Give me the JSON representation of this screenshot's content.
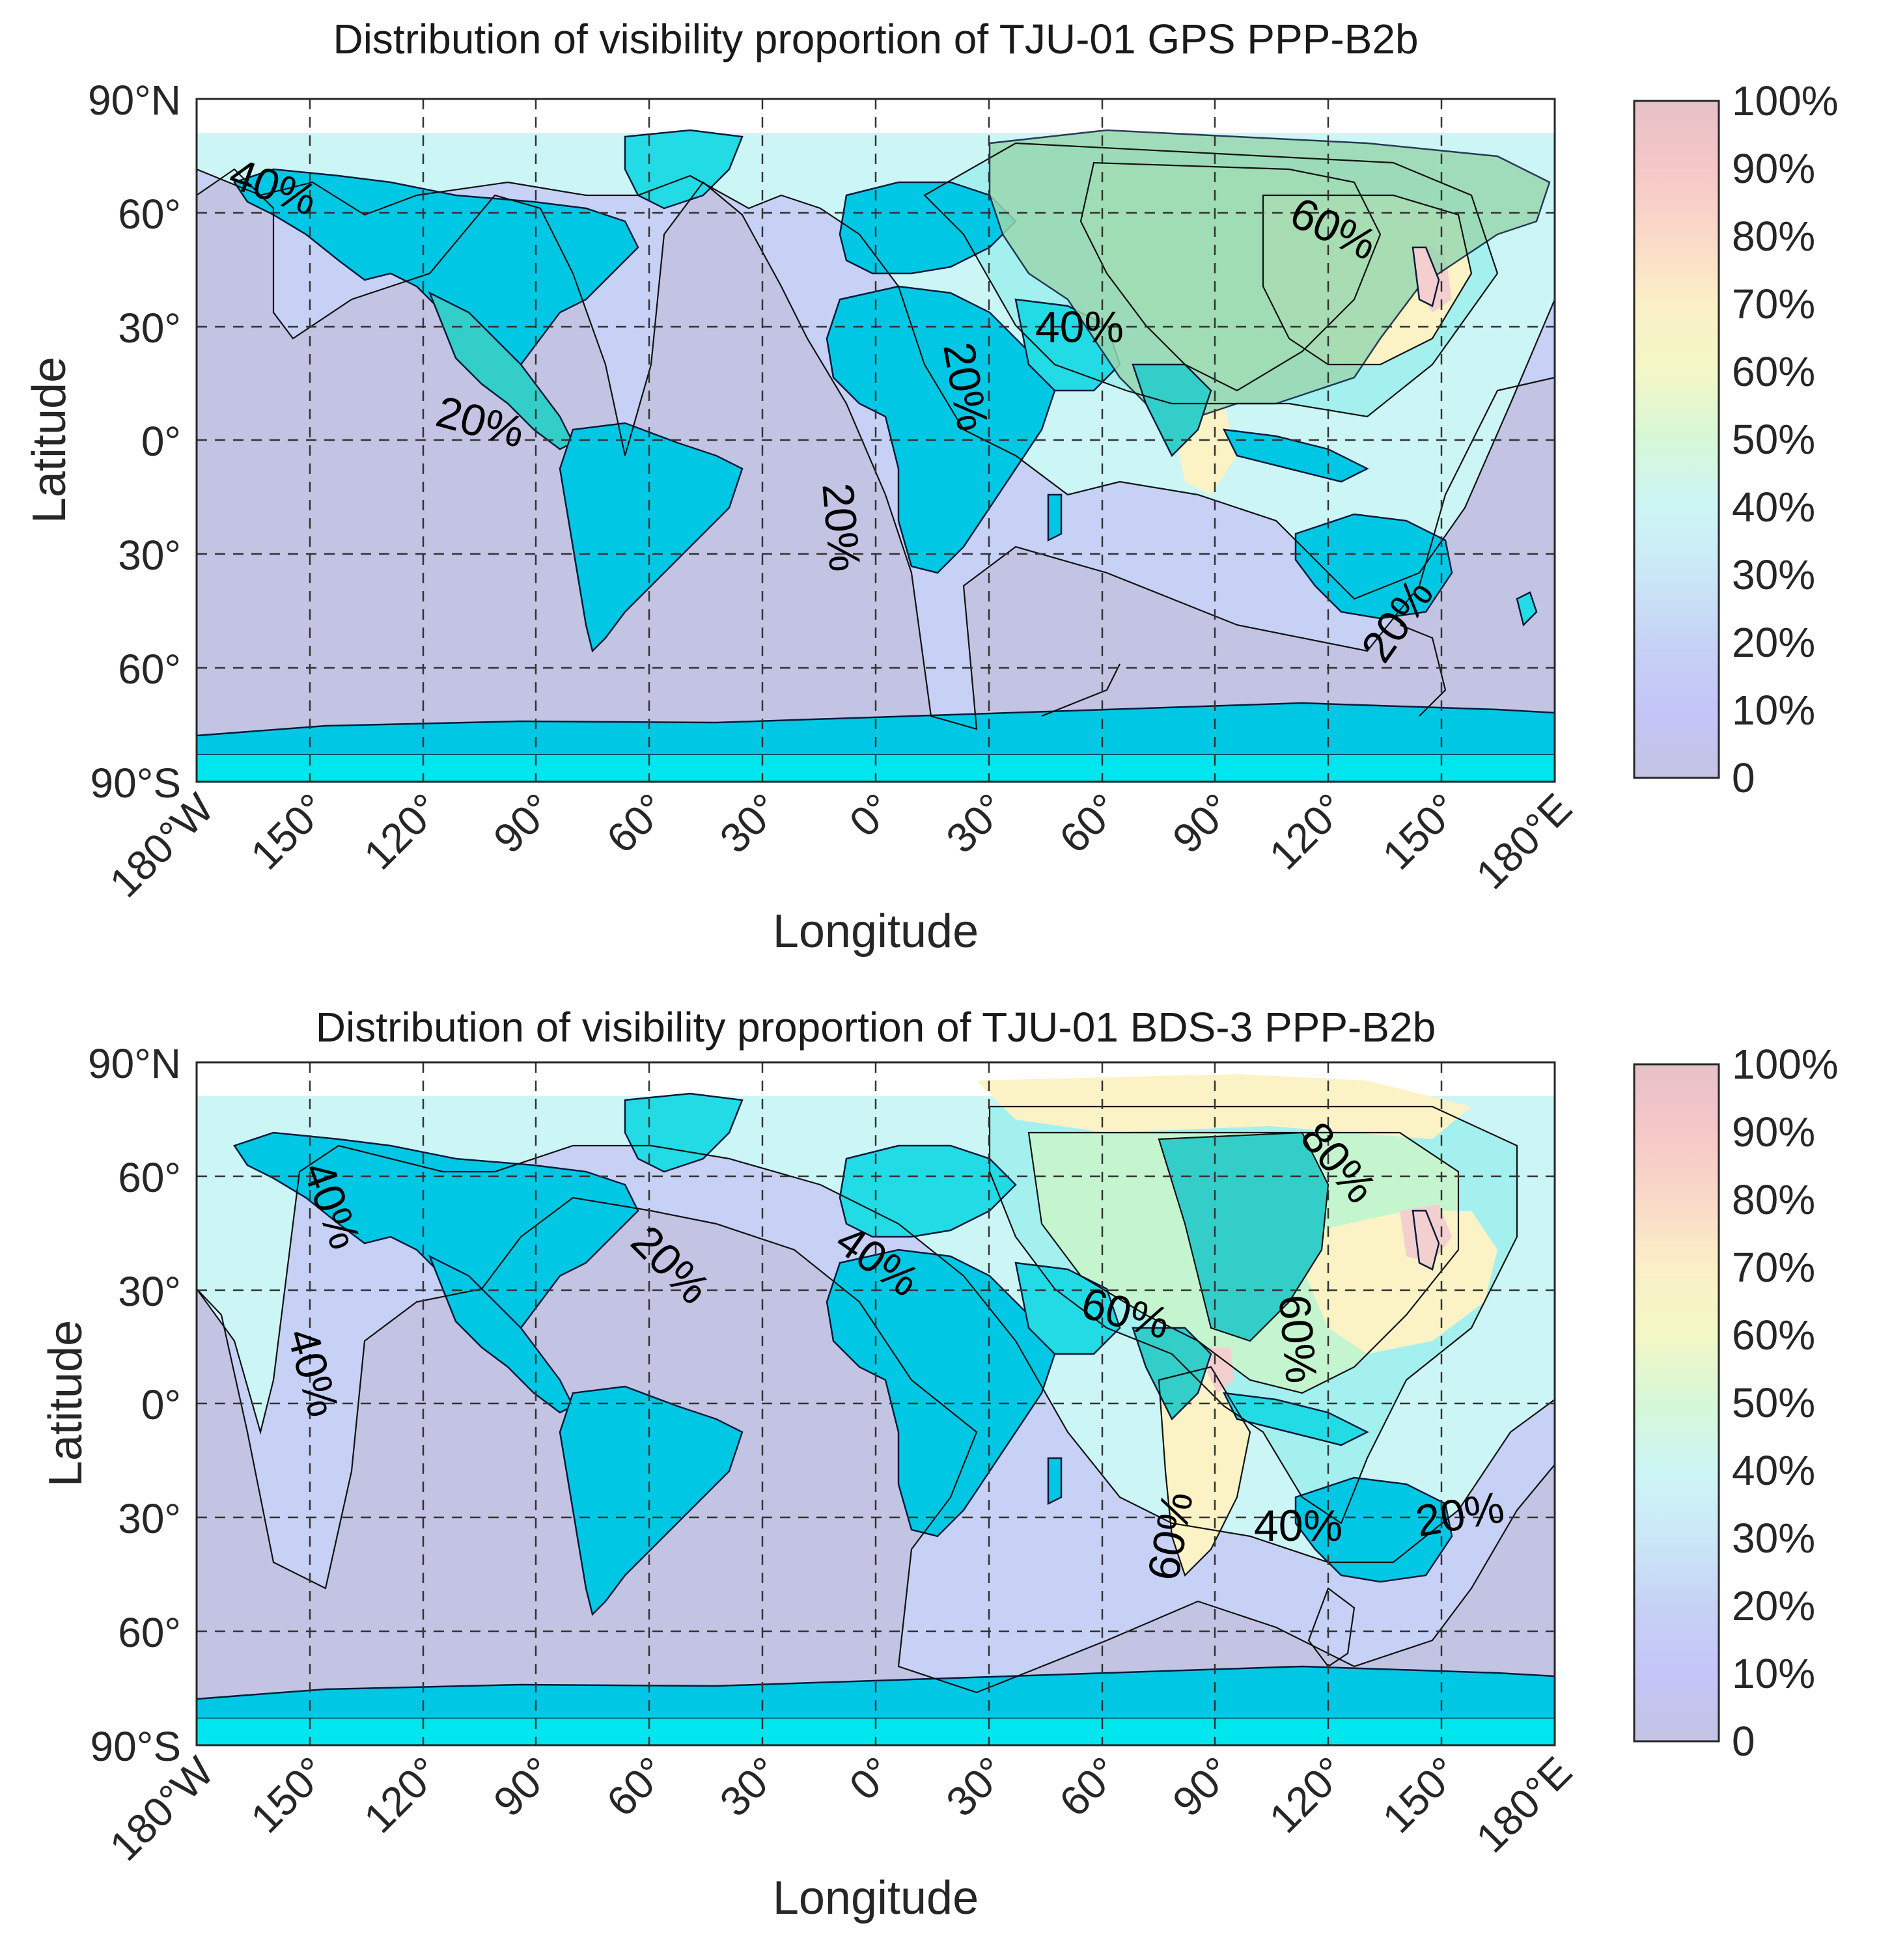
{
  "figure": {
    "panels": [
      {
        "title": "Distribution of visibility proportion of TJU-01 GPS PPP-B2b",
        "xlabel": "Longitude",
        "ylabel": "Latitude",
        "x_ticks": [
          "180°W",
          "150°",
          "120°",
          "90°",
          "60°",
          "30°",
          "0°",
          "30°",
          "60°",
          "90°",
          "120°",
          "150°",
          "180°E"
        ],
        "y_ticks": [
          "90°N",
          "60°",
          "30°",
          "0°",
          "30°",
          "60°",
          "90°S"
        ],
        "colorbar_ticks": [
          "100%",
          "90%",
          "80%",
          "70%",
          "60%",
          "50%",
          "40%",
          "30%",
          "20%",
          "10%",
          "0"
        ],
        "contour_labels": [
          "40%",
          "60%",
          "40%",
          "20%",
          "20%",
          "20%",
          "20%"
        ]
      },
      {
        "title": "Distribution of visibility proportion of TJU-01 BDS-3 PPP-B2b",
        "xlabel": "Longitude",
        "ylabel": "Latitude",
        "x_ticks": [
          "180°W",
          "150°",
          "120°",
          "90°",
          "60°",
          "30°",
          "0°",
          "30°",
          "60°",
          "90°",
          "120°",
          "150°",
          "180°E"
        ],
        "y_ticks": [
          "90°N",
          "60°",
          "30°",
          "0°",
          "30°",
          "60°",
          "90°S"
        ],
        "colorbar_ticks": [
          "100%",
          "90%",
          "80%",
          "70%",
          "60%",
          "50%",
          "40%",
          "30%",
          "20%",
          "10%",
          "0"
        ],
        "contour_labels": [
          "40%",
          "40%",
          "20%",
          "40%",
          "80%",
          "60%",
          "60%",
          "60%",
          "40%",
          "20%"
        ]
      }
    ],
    "colors": {
      "low": "#c3c4e3",
      "band_10_20": "#c6d1f5",
      "band_20_30": "#cde4f7",
      "band_30_40": "#ccf6f6",
      "band_40_50": "#a0f0ee",
      "band_50_60": "#c5f5cf",
      "band_60_70": "#fbf3c5",
      "band_80_90": "#f4cfd0",
      "land_20": "#00c8e4",
      "land_40": "#23dbe5",
      "land_60": "#34cec8",
      "land_70": "#9ad8b0",
      "antarctica": "#00e6ee"
    },
    "chart_data": [
      {
        "type": "heatmap",
        "title": "Distribution of visibility proportion of TJU-01 GPS PPP-B2b",
        "xlabel": "Longitude",
        "ylabel": "Latitude",
        "xlim": [
          -180,
          180
        ],
        "ylim": [
          -90,
          90
        ],
        "colorbar": {
          "min": 0,
          "max": 100,
          "unit": "%"
        },
        "contour_levels": [
          20,
          40,
          60
        ],
        "contour_labels": [
          {
            "text": "40%",
            "lon": -160,
            "lat": 66
          },
          {
            "text": "60%",
            "lon": 121,
            "lat": 55
          },
          {
            "text": "40%",
            "lon": 54,
            "lat": 29
          },
          {
            "text": "20%",
            "lon": 23,
            "lat": 14
          },
          {
            "text": "20%",
            "lon": -105,
            "lat": 4
          },
          {
            "text": "20%",
            "lon": -10,
            "lat": -23
          },
          {
            "text": "20%",
            "lon": 139,
            "lat": -48
          }
        ]
      },
      {
        "type": "heatmap",
        "title": "Distribution of visibility proportion of TJU-01 BDS-3 PPP-B2b",
        "xlabel": "Longitude",
        "ylabel": "Latitude",
        "xlim": [
          -180,
          180
        ],
        "ylim": [
          -90,
          90
        ],
        "colorbar": {
          "min": 0,
          "max": 100,
          "unit": "%"
        },
        "contour_levels": [
          20,
          40,
          60,
          80
        ],
        "contour_labels": [
          {
            "text": "40%",
            "lon": -145,
            "lat": 52
          },
          {
            "text": "40%",
            "lon": -150,
            "lat": 8
          },
          {
            "text": "20%",
            "lon": -55,
            "lat": 36
          },
          {
            "text": "40%",
            "lon": 0,
            "lat": 37
          },
          {
            "text": "80%",
            "lon": 122,
            "lat": 63
          },
          {
            "text": "60%",
            "lon": 66,
            "lat": 23
          },
          {
            "text": "60%",
            "lon": 111,
            "lat": 17
          },
          {
            "text": "60%",
            "lon": 79,
            "lat": -35
          },
          {
            "text": "40%",
            "lon": 112,
            "lat": -33
          },
          {
            "text": "20%",
            "lon": 155,
            "lat": -30
          }
        ]
      }
    ]
  }
}
